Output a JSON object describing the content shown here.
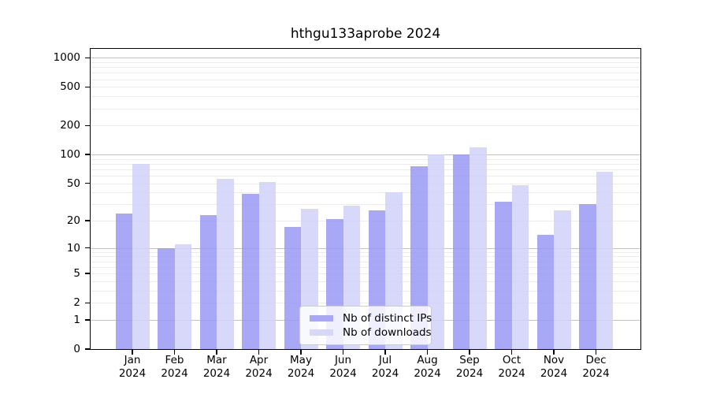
{
  "chart_data": {
    "type": "bar",
    "title": "hthgu133aprobe 2024",
    "scale": "log1p",
    "grid": true,
    "legend_position": "bottom-center-inside",
    "categories": [
      "Jan",
      "Feb",
      "Mar",
      "Apr",
      "May",
      "Jun",
      "Jul",
      "Aug",
      "Sep",
      "Oct",
      "Nov",
      "Dec"
    ],
    "x_sublabel": "2024",
    "series": [
      {
        "name": "Nb of distinct IPs",
        "values": [
          24,
          10,
          23,
          39,
          17,
          21,
          26,
          75,
          100,
          32,
          14,
          30
        ],
        "bar_color": "rgba(153,153,244,0.85)",
        "swatch_color": "#a8a8f6"
      },
      {
        "name": "Nb of downloads",
        "values": [
          80,
          11,
          56,
          52,
          27,
          29,
          40,
          100,
          119,
          48,
          26,
          66
        ],
        "bar_color": "rgba(209,209,250,0.85)",
        "swatch_color": "#d7d7f8"
      }
    ],
    "y_ticks": [
      0,
      1,
      2,
      5,
      10,
      20,
      50,
      100,
      200,
      500,
      1000
    ],
    "ylim": [
      0,
      1040
    ],
    "gridline_major_values": [
      1,
      10,
      100,
      1000
    ],
    "gridline_minor_values": [
      2,
      3,
      4,
      5,
      6,
      7,
      8,
      9,
      20,
      30,
      40,
      50,
      60,
      70,
      80,
      90,
      200,
      300,
      400,
      500,
      600,
      700,
      800,
      900
    ],
    "colors": {
      "grid_major": "#c3c3c3",
      "grid_minor": "#ececec",
      "axis": "#000000",
      "background": "#ffffff"
    }
  }
}
